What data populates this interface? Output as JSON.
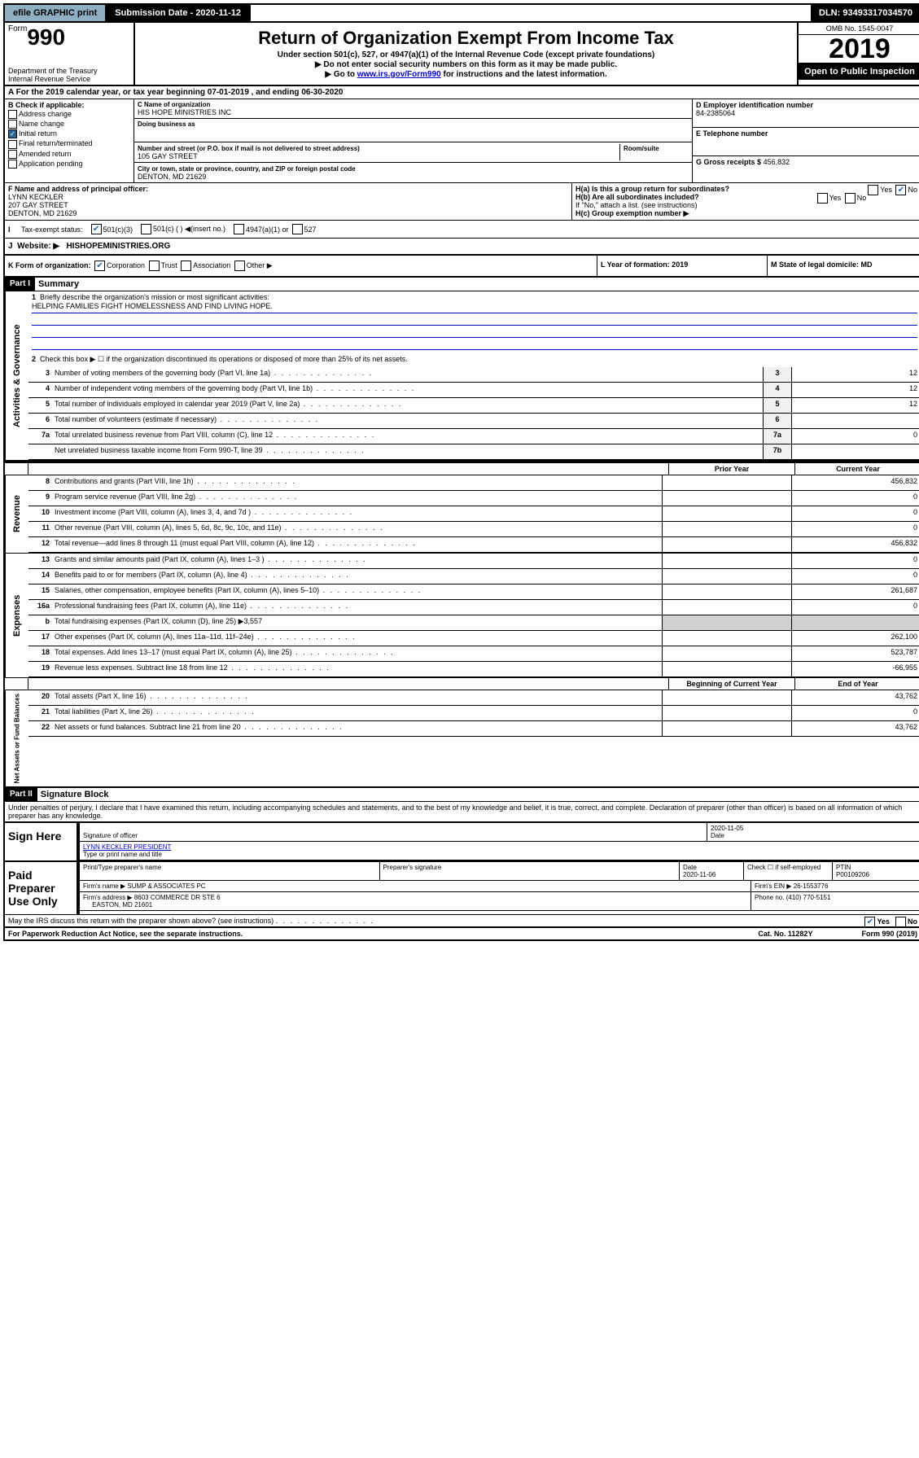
{
  "topbar": {
    "efile": "efile GRAPHIC print",
    "submission": "Submission Date - 2020-11-12",
    "dln": "DLN: 93493317034570"
  },
  "header": {
    "form_word": "Form",
    "form_num": "990",
    "dept": "Department of the Treasury\nInternal Revenue Service",
    "title": "Return of Organization Exempt From Income Tax",
    "subtitle": "Under section 501(c), 527, or 4947(a)(1) of the Internal Revenue Code (except private foundations)",
    "note1": "▶ Do not enter social security numbers on this form as it may be made public.",
    "note2_pre": "▶ Go to ",
    "note2_link": "www.irs.gov/Form990",
    "note2_post": " for instructions and the latest information.",
    "omb": "OMB No. 1545-0047",
    "year": "2019",
    "open": "Open to Public Inspection"
  },
  "rowA": "A For the 2019 calendar year, or tax year beginning 07-01-2019   , and ending 06-30-2020",
  "sectionB": {
    "label": "B Check if applicable:",
    "items": [
      "Address change",
      "Name change",
      "Initial return",
      "Final return/terminated",
      "Amended return",
      "Application pending"
    ],
    "checked_index": 2
  },
  "sectionC": {
    "name_label": "C Name of organization",
    "name": "HIS HOPE MINISTRIES INC",
    "dba_label": "Doing business as",
    "dba": "",
    "addr_label": "Number and street (or P.O. box if mail is not delivered to street address)",
    "room_label": "Room/suite",
    "addr": "105 GAY STREET",
    "city_label": "City or town, state or province, country, and ZIP or foreign postal code",
    "city": "DENTON, MD  21629"
  },
  "sectionD": {
    "label": "D Employer identification number",
    "value": "84-2385064"
  },
  "sectionE": {
    "label": "E Telephone number",
    "value": ""
  },
  "sectionG": {
    "label": "G Gross receipts $",
    "value": "456,832"
  },
  "sectionF": {
    "label": "F  Name and address of principal officer:",
    "name": "LYNN KECKLER",
    "addr1": "207 GAY STREET",
    "addr2": "DENTON, MD  21629"
  },
  "sectionH": {
    "a_label": "H(a)  Is this a group return for subordinates?",
    "a_yes": false,
    "a_no": true,
    "b_label": "H(b)  Are all subordinates included?",
    "b_yes": false,
    "b_no": false,
    "b_note": "If \"No,\" attach a list. (see instructions)",
    "c_label": "H(c)  Group exemption number ▶"
  },
  "rowI": {
    "label": "Tax-exempt status:",
    "opts": [
      "501(c)(3)",
      "501(c) (  ) ◀(insert no.)",
      "4947(a)(1) or",
      "527"
    ],
    "checked": 0
  },
  "rowJ": {
    "label": "Website: ▶",
    "value": "HISHOPEMINISTRIES.ORG"
  },
  "rowK": {
    "label": "K Form of organization:",
    "opts": [
      "Corporation",
      "Trust",
      "Association",
      "Other ▶"
    ],
    "checked": 0,
    "L": "L Year of formation: 2019",
    "M": "M State of legal domicile: MD"
  },
  "partI": {
    "header": "Part I",
    "title": "Summary",
    "governance_label": "Activities & Governance",
    "revenue_label": "Revenue",
    "expenses_label": "Expenses",
    "netassets_label": "Net Assets or Fund Balances",
    "line1_label": "Briefly describe the organization's mission or most significant activities:",
    "line1_text": "HELPING FAMILIES FIGHT HOMELESSNESS AND FIND LIVING HOPE.",
    "line2": "Check this box ▶ ☐  if the organization discontinued its operations or disposed of more than 25% of its net assets.",
    "lines_gov": [
      {
        "n": "3",
        "t": "Number of voting members of the governing body (Part VI, line 1a)",
        "box": "3",
        "v": "12"
      },
      {
        "n": "4",
        "t": "Number of independent voting members of the governing body (Part VI, line 1b)",
        "box": "4",
        "v": "12"
      },
      {
        "n": "5",
        "t": "Total number of individuals employed in calendar year 2019 (Part V, line 2a)",
        "box": "5",
        "v": "12"
      },
      {
        "n": "6",
        "t": "Total number of volunteers (estimate if necessary)",
        "box": "6",
        "v": ""
      },
      {
        "n": "7a",
        "t": "Total unrelated business revenue from Part VIII, column (C), line 12",
        "box": "7a",
        "v": "0"
      },
      {
        "n": "",
        "t": "Net unrelated business taxable income from Form 990-T, line 39",
        "box": "7b",
        "v": ""
      }
    ],
    "col_prior": "Prior Year",
    "col_current": "Current Year",
    "lines_rev": [
      {
        "n": "8",
        "t": "Contributions and grants (Part VIII, line 1h)",
        "p": "",
        "c": "456,832"
      },
      {
        "n": "9",
        "t": "Program service revenue (Part VIII, line 2g)",
        "p": "",
        "c": "0"
      },
      {
        "n": "10",
        "t": "Investment income (Part VIII, column (A), lines 3, 4, and 7d )",
        "p": "",
        "c": "0"
      },
      {
        "n": "11",
        "t": "Other revenue (Part VIII, column (A), lines 5, 6d, 8c, 9c, 10c, and 11e)",
        "p": "",
        "c": "0"
      },
      {
        "n": "12",
        "t": "Total revenue—add lines 8 through 11 (must equal Part VIII, column (A), line 12)",
        "p": "",
        "c": "456,832"
      }
    ],
    "lines_exp": [
      {
        "n": "13",
        "t": "Grants and similar amounts paid (Part IX, column (A), lines 1–3 )",
        "p": "",
        "c": "0"
      },
      {
        "n": "14",
        "t": "Benefits paid to or for members (Part IX, column (A), line 4)",
        "p": "",
        "c": "0"
      },
      {
        "n": "15",
        "t": "Salaries, other compensation, employee benefits (Part IX, column (A), lines 5–10)",
        "p": "",
        "c": "261,687"
      },
      {
        "n": "16a",
        "t": "Professional fundraising fees (Part IX, column (A), line 11e)",
        "p": "",
        "c": "0"
      },
      {
        "n": "b",
        "t": "Total fundraising expenses (Part IX, column (D), line 25) ▶3,557",
        "shaded": true
      },
      {
        "n": "17",
        "t": "Other expenses (Part IX, column (A), lines 11a–11d, 11f–24e)",
        "p": "",
        "c": "262,100"
      },
      {
        "n": "18",
        "t": "Total expenses. Add lines 13–17 (must equal Part IX, column (A), line 25)",
        "p": "",
        "c": "523,787"
      },
      {
        "n": "19",
        "t": "Revenue less expenses. Subtract line 18 from line 12",
        "p": "",
        "c": "-66,955"
      }
    ],
    "col_begin": "Beginning of Current Year",
    "col_end": "End of Year",
    "lines_net": [
      {
        "n": "20",
        "t": "Total assets (Part X, line 16)",
        "p": "",
        "c": "43,762"
      },
      {
        "n": "21",
        "t": "Total liabilities (Part X, line 26)",
        "p": "",
        "c": "0"
      },
      {
        "n": "22",
        "t": "Net assets or fund balances. Subtract line 21 from line 20",
        "p": "",
        "c": "43,762"
      }
    ]
  },
  "partII": {
    "header": "Part II",
    "title": "Signature Block",
    "decl": "Under penalties of perjury, I declare that I have examined this return, including accompanying schedules and statements, and to the best of my knowledge and belief, it is true, correct, and complete. Declaration of preparer (other than officer) is based on all information of which preparer has any knowledge.",
    "sign_here": "Sign Here",
    "sig_officer": "Signature of officer",
    "sig_date_label": "Date",
    "sig_date": "2020-11-05",
    "officer_name": "LYNN KECKLER PRESIDENT",
    "officer_sub": "Type or print name and title",
    "paid": "Paid Preparer Use Only",
    "prep_name_label": "Print/Type preparer's name",
    "prep_name": "",
    "prep_sig_label": "Preparer's signature",
    "prep_date_label": "Date",
    "prep_date": "2020-11-06",
    "check_self": "Check ☐ if self-employed",
    "ptin_label": "PTIN",
    "ptin": "P00109206",
    "firm_name_label": "Firm's name   ▶",
    "firm_name": "SUMP & ASSOCIATES PC",
    "firm_ein_label": "Firm's EIN ▶",
    "firm_ein": "26-1553776",
    "firm_addr_label": "Firm's address ▶",
    "firm_addr1": "8603 COMMERCE DR STE 6",
    "firm_addr2": "EASTON, MD  21601",
    "phone_label": "Phone no.",
    "phone": "(410) 770-5151",
    "discuss": "May the IRS discuss this return with the preparer shown above? (see instructions)",
    "discuss_yes": true
  },
  "footer": {
    "left": "For Paperwork Reduction Act Notice, see the separate instructions.",
    "mid": "Cat. No. 11282Y",
    "right": "Form 990 (2019)"
  }
}
